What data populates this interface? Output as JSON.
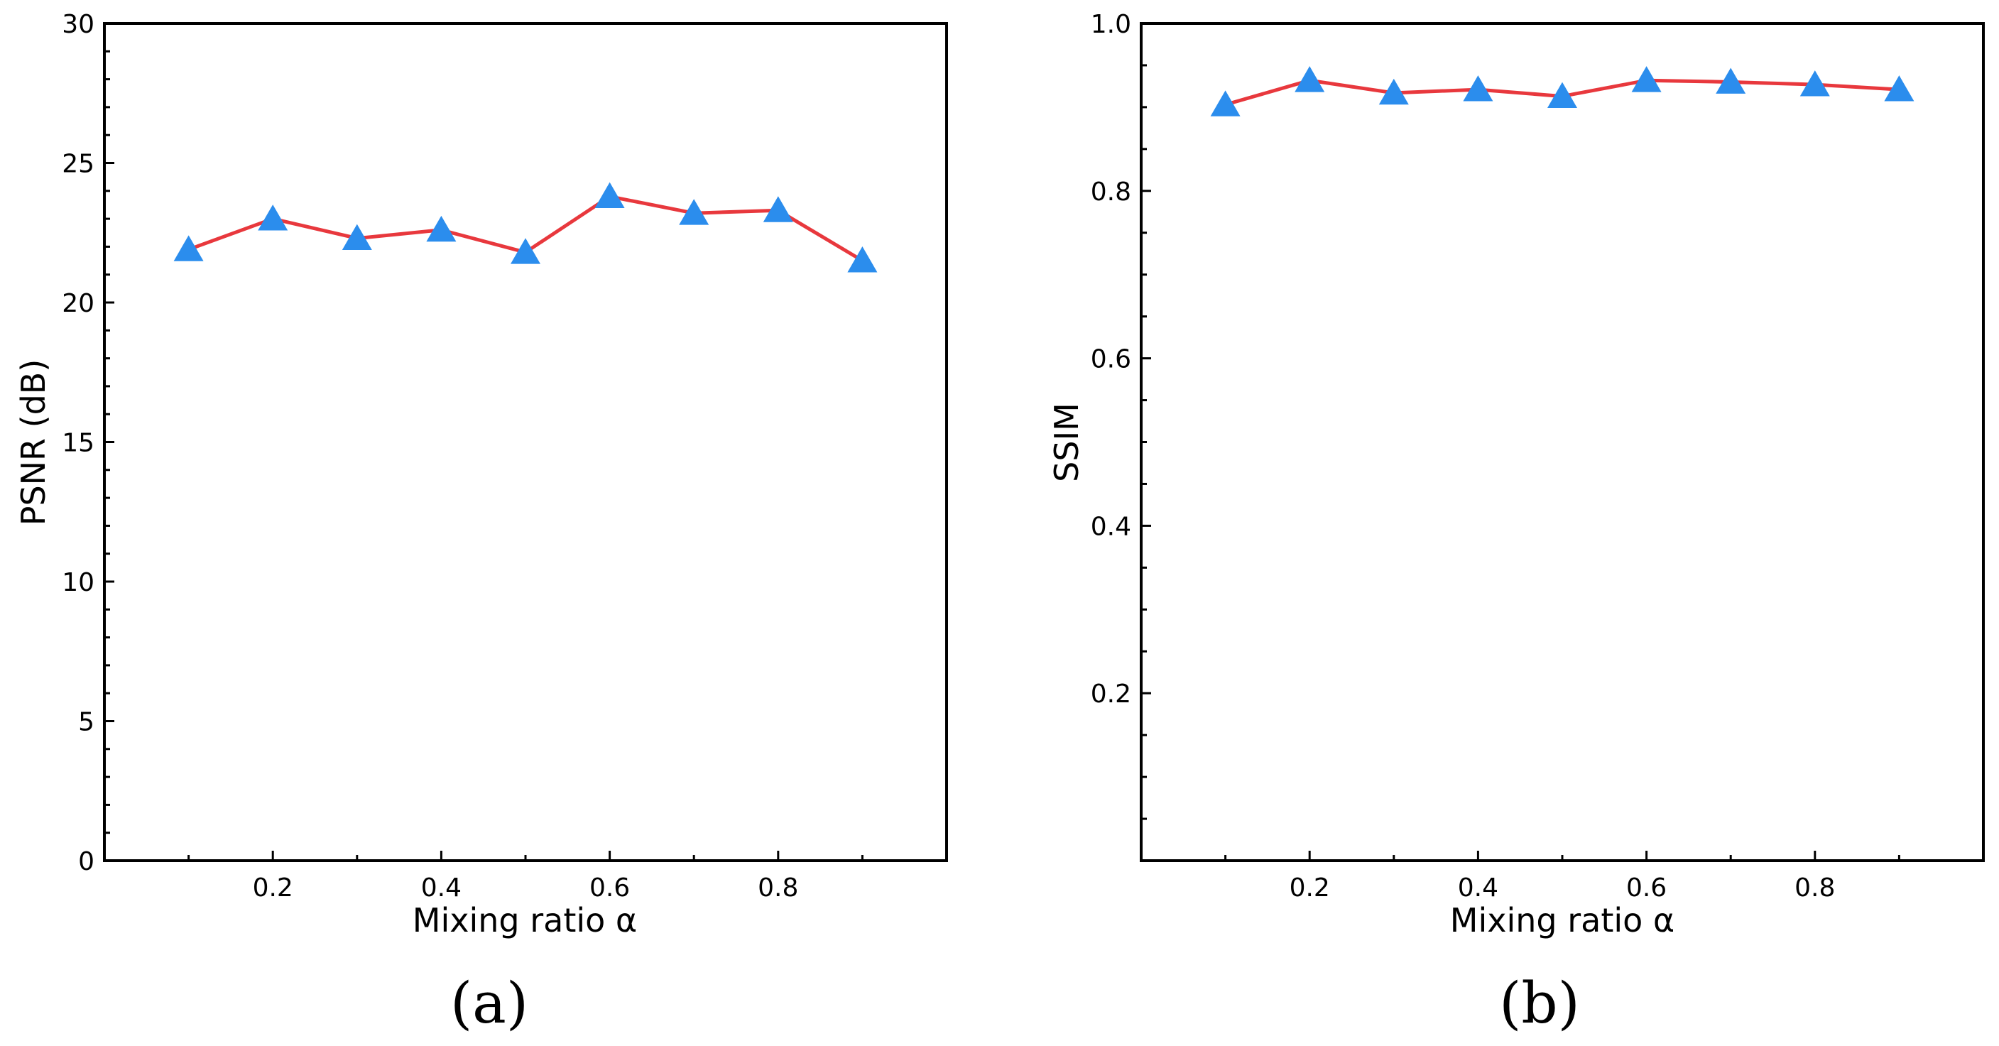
{
  "colors": {
    "line": "#e8383d",
    "marker": "#2b8ded",
    "axes": "#000000",
    "background": "#ffffff"
  },
  "chart_data": [
    {
      "type": "line",
      "caption": "(a)",
      "title": "",
      "xlabel": "Mixing ratio α",
      "ylabel": "PSNR (dB)",
      "xlim": [
        0,
        1.0
      ],
      "ylim": [
        0,
        30
      ],
      "xticks": [
        0.2,
        0.4,
        0.6,
        0.8
      ],
      "xtick_labels": [
        "0.2",
        "0.4",
        "0.6",
        "0.8"
      ],
      "xminor": [
        0.1,
        0.3,
        0.5,
        0.7,
        0.9
      ],
      "yticks": [
        0,
        5,
        10,
        15,
        20,
        25,
        30
      ],
      "ytick_labels": [
        "0",
        "5",
        "10",
        "15",
        "20",
        "25",
        "30"
      ],
      "yminor": [
        1,
        2,
        3,
        4,
        6,
        7,
        8,
        9,
        11,
        12,
        13,
        14,
        16,
        17,
        18,
        19,
        21,
        22,
        23,
        24,
        26,
        27,
        28,
        29
      ],
      "grid": false,
      "marker": "triangle",
      "series": [
        {
          "name": "PSNR",
          "x": [
            0.1,
            0.2,
            0.3,
            0.4,
            0.5,
            0.6,
            0.7,
            0.8,
            0.9
          ],
          "y": [
            21.9,
            23.0,
            22.3,
            22.6,
            21.8,
            23.8,
            23.2,
            23.3,
            21.5
          ]
        }
      ]
    },
    {
      "type": "line",
      "caption": "(b)",
      "title": "",
      "xlabel": "Mixing ratio α",
      "ylabel": "SSIM",
      "xlim": [
        0,
        1.0
      ],
      "ylim": [
        0,
        1.0
      ],
      "xticks": [
        0.2,
        0.4,
        0.6,
        0.8
      ],
      "xtick_labels": [
        "0.2",
        "0.4",
        "0.6",
        "0.8"
      ],
      "xminor": [
        0.1,
        0.3,
        0.5,
        0.7,
        0.9
      ],
      "yticks": [
        0.2,
        0.4,
        0.6,
        0.8,
        1.0
      ],
      "ytick_labels": [
        "0.2",
        "0.4",
        "0.6",
        "0.8",
        "1.0"
      ],
      "yminor": [
        0.05,
        0.1,
        0.15,
        0.25,
        0.3,
        0.35,
        0.45,
        0.5,
        0.55,
        0.65,
        0.7,
        0.75,
        0.85,
        0.9,
        0.95
      ],
      "grid": false,
      "marker": "triangle",
      "series": [
        {
          "name": "SSIM",
          "x": [
            0.1,
            0.2,
            0.3,
            0.4,
            0.5,
            0.6,
            0.7,
            0.8,
            0.9
          ],
          "y": [
            0.903,
            0.932,
            0.917,
            0.921,
            0.913,
            0.932,
            0.93,
            0.927,
            0.921
          ]
        }
      ]
    }
  ]
}
